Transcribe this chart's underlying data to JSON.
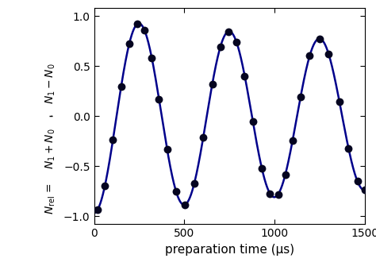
{
  "title": "",
  "xlabel": "preparation time (μs)",
  "xlim": [
    0,
    1500
  ],
  "ylim": [
    -1.08,
    1.08
  ],
  "xticks": [
    0,
    500,
    1000,
    1500
  ],
  "yticks": [
    -1.0,
    -0.5,
    0.0,
    0.5,
    1.0
  ],
  "sine_amplitude": 0.97,
  "sine_decay": 0.00018,
  "sine_frequency": 0.012566,
  "sine_phase": 3.14159,
  "curve_color": "#00008B",
  "dot_color": "#050520",
  "dot_size": 50,
  "line_width": 1.8,
  "data_points_t": [
    20,
    60,
    105,
    150,
    195,
    240,
    280,
    320,
    360,
    405,
    455,
    505,
    555,
    605,
    655,
    700,
    745,
    790,
    835,
    880,
    930,
    975,
    1020,
    1060,
    1100,
    1145,
    1195,
    1250,
    1300,
    1360,
    1410,
    1460,
    1500
  ],
  "background_color": "#ffffff",
  "tick_fontsize": 10,
  "label_fontsize": 11
}
